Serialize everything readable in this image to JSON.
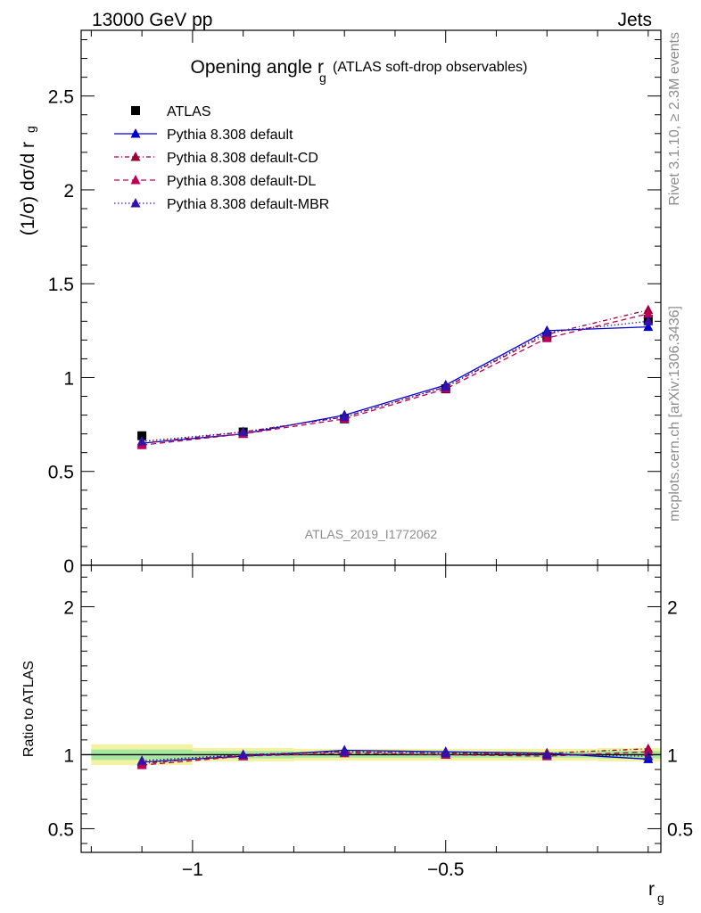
{
  "header": {
    "energy_label": "13000 GeV pp",
    "process_label": "Jets"
  },
  "side_labels": {
    "rivet": "Rivet 3.1.10, ≥ 2.3M events",
    "source": "mcplots.cern.ch [arXiv:1306.3436]"
  },
  "chart_data": [
    {
      "type": "line",
      "title_main": "Opening angle r",
      "title_sub": "g",
      "title_note": "(ATLAS soft-drop observables)",
      "analysis_label": "ATLAS_2019_I1772062",
      "ylabel_main": "(1/σ) dσ/d r",
      "ylabel_sub": "g",
      "xlim": [
        -1.22,
        -0.075
      ],
      "ylim": [
        0,
        2.85
      ],
      "y_ticks": [
        0,
        0.5,
        1,
        1.5,
        2,
        2.5
      ],
      "y_tick_labels": [
        "0",
        "0.5",
        "1",
        "1.5",
        "2",
        "2.5"
      ],
      "grid": false,
      "legend_position": "top-left",
      "series": [
        {
          "name": "ATLAS",
          "color": "#000000",
          "marker": "square",
          "line": "none",
          "x": [
            -1.1,
            -0.9,
            -0.7,
            -0.5,
            -0.3,
            -0.1
          ],
          "values": [
            0.69,
            0.71,
            0.78,
            0.94,
            1.22,
            1.31
          ]
        },
        {
          "name": "Pythia 8.308 default",
          "color": "#0000cc",
          "marker": "triangle",
          "line": "solid",
          "x": [
            -1.1,
            -0.9,
            -0.7,
            -0.5,
            -0.3,
            -0.1
          ],
          "values": [
            0.65,
            0.7,
            0.8,
            0.96,
            1.25,
            1.27
          ]
        },
        {
          "name": "Pythia 8.308 default-CD",
          "color": "#990033",
          "marker": "triangle",
          "line": "dashdot",
          "x": [
            -1.1,
            -0.9,
            -0.7,
            -0.5,
            -0.3,
            -0.1
          ],
          "values": [
            0.65,
            0.71,
            0.79,
            0.95,
            1.23,
            1.36
          ]
        },
        {
          "name": "Pythia 8.308 default-DL",
          "color": "#bb0055",
          "marker": "triangle",
          "line": "dashed",
          "x": [
            -1.1,
            -0.9,
            -0.7,
            -0.5,
            -0.3,
            -0.1
          ],
          "values": [
            0.64,
            0.7,
            0.78,
            0.94,
            1.21,
            1.34
          ]
        },
        {
          "name": "Pythia 8.308 default-MBR",
          "color": "#3311aa",
          "marker": "triangle",
          "line": "dotted",
          "x": [
            -1.1,
            -0.9,
            -0.7,
            -0.5,
            -0.3,
            -0.1
          ],
          "values": [
            0.66,
            0.71,
            0.79,
            0.95,
            1.24,
            1.3
          ]
        }
      ]
    },
    {
      "type": "line",
      "ylabel": "Ratio to ATLAS",
      "xlabel_main": "r",
      "xlabel_sub": "g",
      "xlim": [
        -1.22,
        -0.075
      ],
      "ylim": [
        0.34,
        2.28
      ],
      "x_ticks": [
        -1,
        -0.5
      ],
      "x_tick_labels": [
        "−1",
        "−0.5"
      ],
      "y_ticks": [
        0.5,
        1,
        2
      ],
      "y_tick_labels": [
        "0.5",
        "1",
        "2"
      ],
      "reference_line": 1,
      "uncertainty_band": {
        "x_edges": [
          -1.2,
          -1.0,
          -0.8,
          -0.6,
          -0.4,
          -0.2,
          -0.075
        ],
        "outer_halfwidth": [
          0.07,
          0.045,
          0.04,
          0.04,
          0.04,
          0.045
        ],
        "inner_halfwidth": [
          0.035,
          0.025,
          0.02,
          0.02,
          0.02,
          0.025
        ],
        "outer_color": "#f2f2a0",
        "inner_color": "#a6e8a0"
      },
      "series": [
        {
          "name": "Pythia 8.308 default",
          "color": "#0000cc",
          "marker": "triangle",
          "line": "solid",
          "x": [
            -1.1,
            -0.9,
            -0.7,
            -0.5,
            -0.3,
            -0.1
          ],
          "values": [
            0.95,
            0.99,
            1.03,
            1.02,
            1.01,
            0.97
          ]
        },
        {
          "name": "Pythia 8.308 default-CD",
          "color": "#990033",
          "marker": "triangle",
          "line": "dashdot",
          "x": [
            -1.1,
            -0.9,
            -0.7,
            -0.5,
            -0.3,
            -0.1
          ],
          "values": [
            0.94,
            1.0,
            1.02,
            1.01,
            1.01,
            1.04
          ]
        },
        {
          "name": "Pythia 8.308 default-DL",
          "color": "#bb0055",
          "marker": "triangle",
          "line": "dashed",
          "x": [
            -1.1,
            -0.9,
            -0.7,
            -0.5,
            -0.3,
            -0.1
          ],
          "values": [
            0.93,
            0.99,
            1.01,
            1.0,
            0.99,
            1.02
          ]
        },
        {
          "name": "Pythia 8.308 default-MBR",
          "color": "#3311aa",
          "marker": "triangle",
          "line": "dotted",
          "x": [
            -1.1,
            -0.9,
            -0.7,
            -0.5,
            -0.3,
            -0.1
          ],
          "values": [
            0.96,
            1.0,
            1.02,
            1.01,
            1.0,
            0.99
          ]
        }
      ]
    }
  ]
}
